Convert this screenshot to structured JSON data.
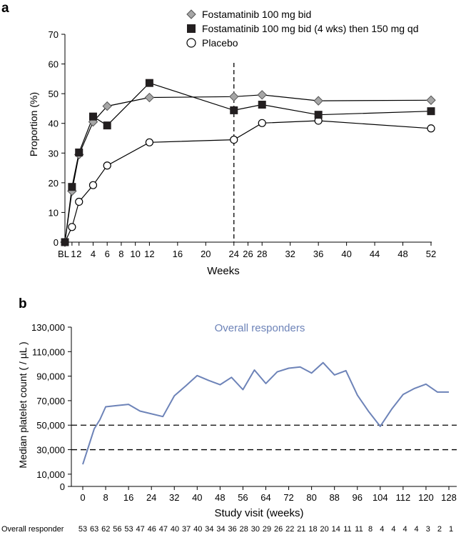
{
  "colors": {
    "axis": "#000000",
    "fosta_bid_fill": "#a6a6a6",
    "fosta_qd_fill": "#231f20",
    "placebo_fill": "#ffffff",
    "responder_line": "#6d83b8",
    "responder_label": "#6d83b8"
  },
  "chart_data": [
    {
      "type": "line",
      "panel_label": "a",
      "xlabel": "Weeks",
      "ylabel": "Proportion (%)",
      "xlim": [
        0,
        52
      ],
      "ylim": [
        0,
        70
      ],
      "x_ticks": [
        {
          "x": 0,
          "label": "BL"
        },
        {
          "x": 1,
          "label": "1"
        },
        {
          "x": 2,
          "label": "2"
        },
        {
          "x": 4,
          "label": "4"
        },
        {
          "x": 6,
          "label": "6"
        },
        {
          "x": 8,
          "label": "8"
        },
        {
          "x": 10,
          "label": "10"
        },
        {
          "x": 12,
          "label": "12"
        },
        {
          "x": 16,
          "label": "16"
        },
        {
          "x": 20,
          "label": "20"
        },
        {
          "x": 24,
          "label": "24"
        },
        {
          "x": 26,
          "label": "26"
        },
        {
          "x": 28,
          "label": "28"
        },
        {
          "x": 32,
          "label": "32"
        },
        {
          "x": 36,
          "label": "36"
        },
        {
          "x": 40,
          "label": "40"
        },
        {
          "x": 44,
          "label": "44"
        },
        {
          "x": 48,
          "label": "48"
        },
        {
          "x": 52,
          "label": "52"
        }
      ],
      "y_ticks": [
        0,
        10,
        20,
        30,
        40,
        50,
        60,
        70
      ],
      "reference_line_x": 24,
      "legend_position": "top-right",
      "series": [
        {
          "name": "Fostamatinib 100 mg bid",
          "marker": "diamond",
          "x": [
            0,
            1,
            2,
            4,
            6,
            12,
            24,
            28,
            36,
            52
          ],
          "y": [
            0,
            17.2,
            29.5,
            40.5,
            45.8,
            48.7,
            49.0,
            49.6,
            47.6,
            47.8
          ]
        },
        {
          "name": "Fostamatinib 100 mg bid (4 wks) then 150 mg qd",
          "marker": "square",
          "x": [
            0,
            1,
            2,
            4,
            6,
            12,
            24,
            28,
            36,
            52
          ],
          "y": [
            0,
            18.6,
            30.2,
            42.3,
            39.3,
            53.6,
            44.4,
            46.3,
            42.9,
            44.1
          ]
        },
        {
          "name": "Placebo",
          "marker": "circle",
          "x": [
            0,
            1,
            2,
            4,
            6,
            12,
            24,
            28,
            36,
            52
          ],
          "y": [
            0,
            5.1,
            13.6,
            19.2,
            25.8,
            33.6,
            34.5,
            40.1,
            40.9,
            38.3
          ]
        }
      ]
    },
    {
      "type": "line",
      "panel_label": "b",
      "title": "Overall responders",
      "xlabel": "Study visit (weeks)",
      "ylabel": "Median platelet count ( / µL )",
      "xlim": [
        0,
        128
      ],
      "ylim": [
        0,
        130000
      ],
      "x_ticks": [
        0,
        8,
        16,
        24,
        32,
        40,
        48,
        56,
        64,
        72,
        80,
        88,
        96,
        104,
        112,
        120,
        128
      ],
      "y_ticks": [
        {
          "value": 0,
          "label": "0"
        },
        {
          "value": 10000,
          "label": "10,000"
        },
        {
          "value": 30000,
          "label": "30,000"
        },
        {
          "value": 50000,
          "label": "50,000"
        },
        {
          "value": 70000,
          "label": "70,000"
        },
        {
          "value": 90000,
          "label": "90,000"
        },
        {
          "value": 110000,
          "label": "110,000"
        },
        {
          "value": 130000,
          "label": "130,000"
        }
      ],
      "reference_lines_y": [
        30000,
        50000
      ],
      "series": [
        {
          "name": "Overall responders",
          "x": [
            0,
            4,
            6,
            8,
            12,
            16,
            20,
            28,
            32,
            36,
            40,
            44,
            48,
            52,
            56,
            60,
            64,
            68,
            72,
            76,
            80,
            84,
            88,
            92,
            96,
            100,
            104,
            108,
            112,
            116,
            120,
            124,
            128
          ],
          "y": [
            18000,
            47000,
            54500,
            65000,
            66000,
            67000,
            61500,
            57000,
            74000,
            82000,
            90500,
            86500,
            83000,
            89000,
            79000,
            95000,
            84000,
            93500,
            96500,
            97500,
            92500,
            101000,
            91000,
            94500,
            74500,
            61000,
            49000,
            63000,
            75000,
            80000,
            83500,
            77000,
            77000
          ]
        }
      ],
      "responder_row": {
        "label": "Overall responder",
        "counts": [
          "53",
          "63",
          "62",
          "56",
          "53",
          "47",
          "46",
          "47",
          "40",
          "37",
          "40",
          "34",
          "34",
          "36",
          "28",
          "30",
          "29",
          "26",
          "22",
          "21",
          "18",
          "20",
          "14",
          "11",
          "11",
          "8",
          "4",
          "4",
          "4",
          "4",
          "3",
          "2",
          "1"
        ]
      }
    }
  ]
}
